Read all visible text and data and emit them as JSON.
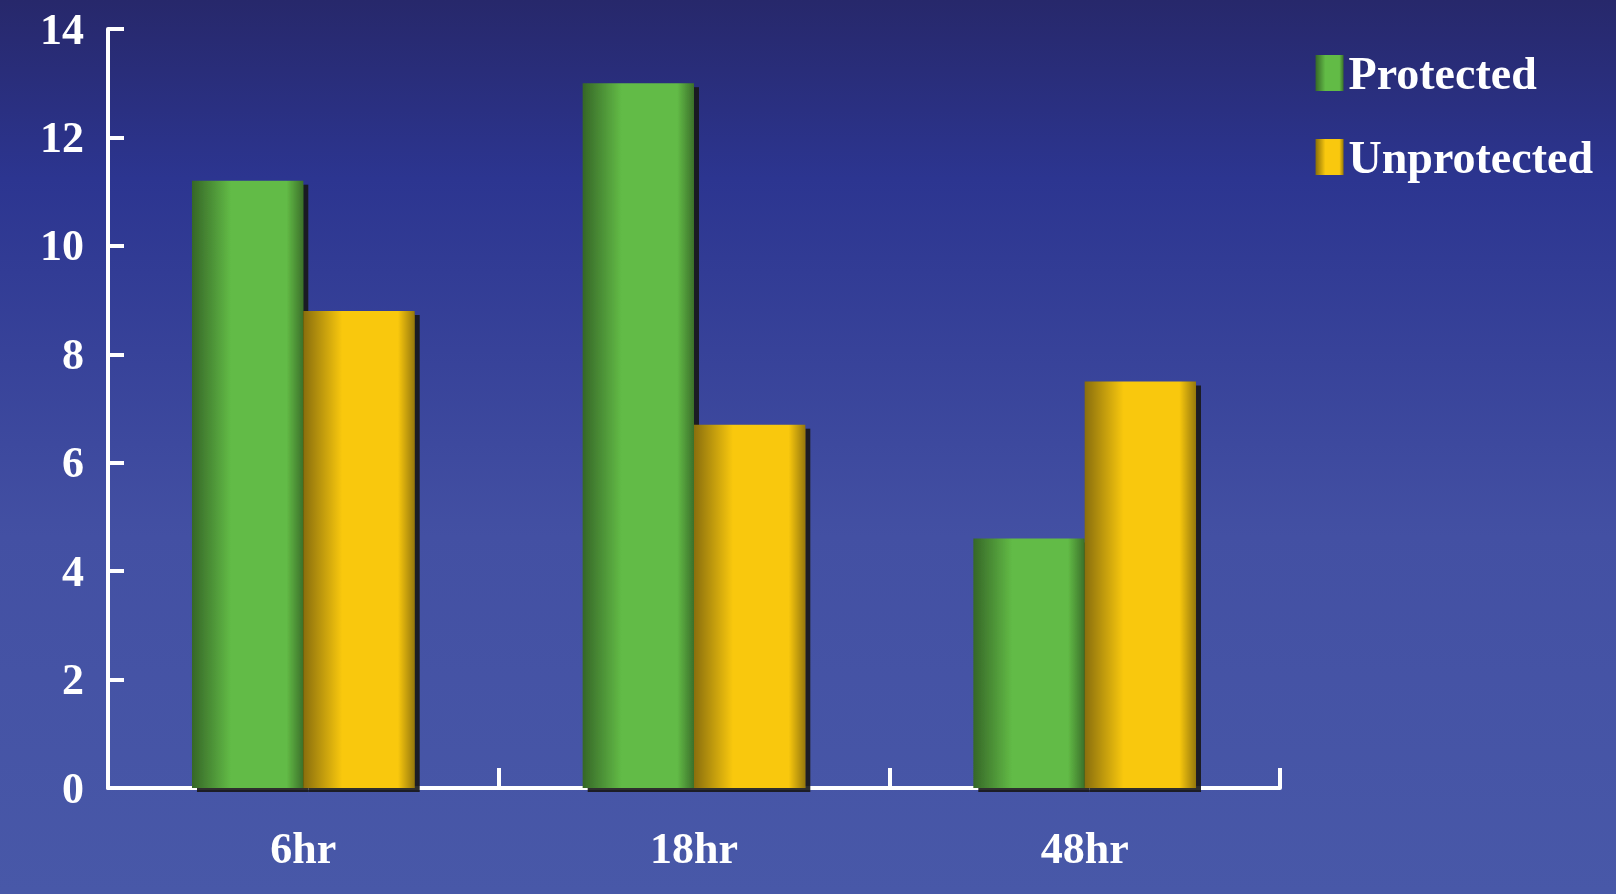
{
  "chart_data": {
    "type": "bar",
    "categories": [
      "6hr",
      "18hr",
      "48hr"
    ],
    "series": [
      {
        "name": "Protected",
        "color": "#62bb46",
        "values": [
          11.2,
          13.0,
          4.6
        ]
      },
      {
        "name": "Unprotected",
        "color": "#f9c80e",
        "values": [
          8.8,
          6.7,
          7.5
        ]
      }
    ],
    "ylim": [
      0,
      14
    ],
    "yticks": [
      0,
      2,
      4,
      6,
      8,
      10,
      12,
      14
    ],
    "grid": false,
    "legend": "top right"
  }
}
